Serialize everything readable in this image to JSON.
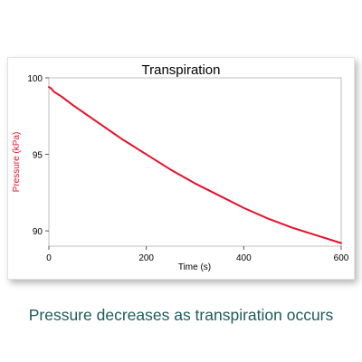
{
  "chart_data": {
    "type": "line",
    "title": "Transpiration",
    "xlabel": "Time (s)",
    "ylabel": "Pressure (kPa)",
    "xlim": [
      0,
      600
    ],
    "ylim": [
      89,
      100
    ],
    "x_ticks": [
      0,
      200,
      400,
      600
    ],
    "y_ticks": [
      90,
      95,
      100
    ],
    "grid": false,
    "series": [
      {
        "color": "#e8102a",
        "x": [
          0,
          5,
          10,
          25,
          50,
          100,
          150,
          200,
          250,
          300,
          350,
          400,
          450,
          500,
          550,
          600
        ],
        "y": [
          99.4,
          99.3,
          99.1,
          98.8,
          98.2,
          97.1,
          96.0,
          95.0,
          94.0,
          93.1,
          92.3,
          91.5,
          90.8,
          90.2,
          89.7,
          89.2
        ]
      }
    ]
  },
  "caption": "Pressure decreases as transpiration occurs",
  "colors": {
    "line": "#e8102a",
    "ylabel": "#e8102a",
    "caption": "#1f5a5c"
  }
}
